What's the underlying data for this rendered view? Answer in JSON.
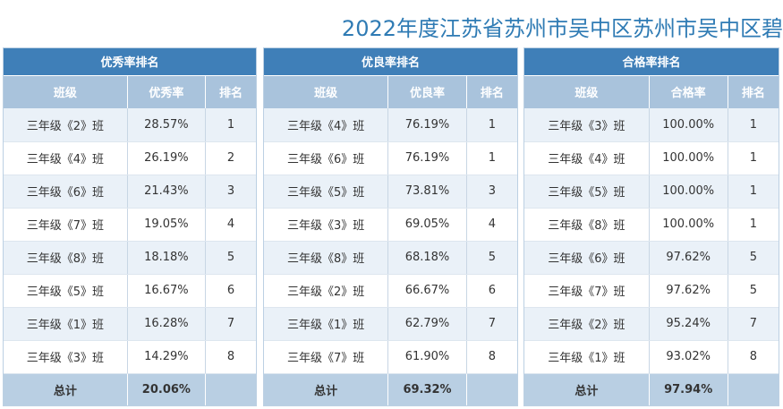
{
  "page_title": "2022年度江苏省苏州市吴中区苏州市吴中区碧",
  "panels": [
    {
      "caption": "优秀率排名",
      "headers": [
        "班级",
        "优秀率",
        "排名"
      ],
      "rows": [
        [
          "三年级《2》班",
          "28.57%",
          "1"
        ],
        [
          "三年级《4》班",
          "26.19%",
          "2"
        ],
        [
          "三年级《6》班",
          "21.43%",
          "3"
        ],
        [
          "三年级《7》班",
          "19.05%",
          "4"
        ],
        [
          "三年级《8》班",
          "18.18%",
          "5"
        ],
        [
          "三年级《5》班",
          "16.67%",
          "6"
        ],
        [
          "三年级《1》班",
          "16.28%",
          "7"
        ],
        [
          "三年级《3》班",
          "14.29%",
          "8"
        ]
      ],
      "total": [
        "总计",
        "20.06%",
        ""
      ]
    },
    {
      "caption": "优良率排名",
      "headers": [
        "班级",
        "优良率",
        "排名"
      ],
      "rows": [
        [
          "三年级《4》班",
          "76.19%",
          "1"
        ],
        [
          "三年级《6》班",
          "76.19%",
          "1"
        ],
        [
          "三年级《5》班",
          "73.81%",
          "3"
        ],
        [
          "三年级《3》班",
          "69.05%",
          "4"
        ],
        [
          "三年级《8》班",
          "68.18%",
          "5"
        ],
        [
          "三年级《2》班",
          "66.67%",
          "6"
        ],
        [
          "三年级《1》班",
          "62.79%",
          "7"
        ],
        [
          "三年级《7》班",
          "61.90%",
          "8"
        ]
      ],
      "total": [
        "总计",
        "69.32%",
        ""
      ]
    },
    {
      "caption": "合格率排名",
      "headers": [
        "班级",
        "合格率",
        "排名"
      ],
      "rows": [
        [
          "三年级《3》班",
          "100.00%",
          "1"
        ],
        [
          "三年级《4》班",
          "100.00%",
          "1"
        ],
        [
          "三年级《5》班",
          "100.00%",
          "1"
        ],
        [
          "三年级《8》班",
          "100.00%",
          "1"
        ],
        [
          "三年级《6》班",
          "97.62%",
          "5"
        ],
        [
          "三年级《7》班",
          "97.62%",
          "5"
        ],
        [
          "三年级《2》班",
          "95.24%",
          "7"
        ],
        [
          "三年级《1》班",
          "93.02%",
          "8"
        ]
      ],
      "total": [
        "总计",
        "97.94%",
        ""
      ]
    }
  ]
}
